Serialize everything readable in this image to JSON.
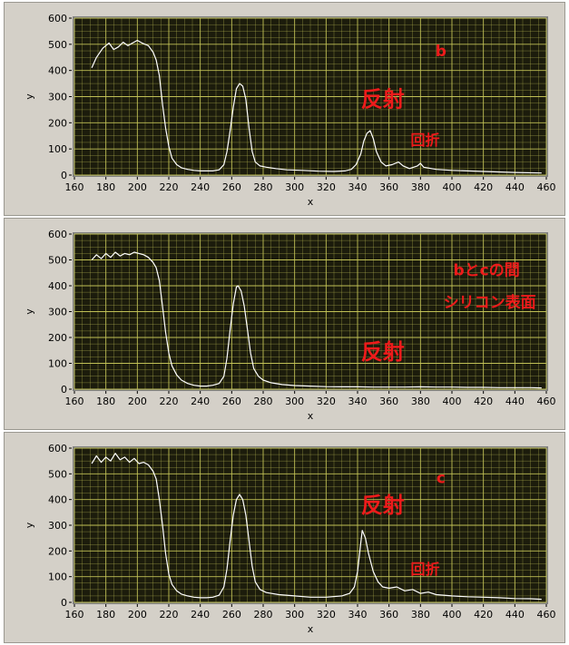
{
  "chart_data": [
    {
      "type": "line",
      "xlabel": "x",
      "ylabel": "y",
      "xlim": [
        160,
        460
      ],
      "ylim": [
        0,
        600
      ],
      "xticks": [
        160,
        180,
        200,
        220,
        240,
        260,
        280,
        300,
        320,
        340,
        360,
        380,
        400,
        420,
        440,
        460
      ],
      "yticks": [
        0,
        100,
        200,
        300,
        400,
        500,
        600
      ],
      "grid": true,
      "colors": {
        "plot_bg": "#1c1c0c",
        "grid": "#c8c85a",
        "line": "#ffffff",
        "annotation": "#ee1b1b"
      },
      "annotations": [
        {
          "text": "b",
          "at": [
            393,
            455
          ]
        },
        {
          "text": "反射",
          "at": [
            356,
            262
          ]
        },
        {
          "text": "回折",
          "at": [
            383,
            115
          ]
        }
      ],
      "series": [
        {
          "points": [
            [
              171,
              410
            ],
            [
              174,
              450
            ],
            [
              178,
              485
            ],
            [
              182,
              505
            ],
            [
              185,
              480
            ],
            [
              188,
              490
            ],
            [
              191,
              508
            ],
            [
              194,
              495
            ],
            [
              197,
              505
            ],
            [
              200,
              515
            ],
            [
              203,
              505
            ],
            [
              207,
              495
            ],
            [
              210,
              470
            ],
            [
              212,
              440
            ],
            [
              214,
              380
            ],
            [
              216,
              270
            ],
            [
              218,
              180
            ],
            [
              220,
              110
            ],
            [
              222,
              65
            ],
            [
              225,
              40
            ],
            [
              228,
              28
            ],
            [
              232,
              22
            ],
            [
              236,
              18
            ],
            [
              240,
              16
            ],
            [
              244,
              16
            ],
            [
              248,
              16
            ],
            [
              252,
              20
            ],
            [
              255,
              40
            ],
            [
              257,
              90
            ],
            [
              259,
              170
            ],
            [
              261,
              260
            ],
            [
              263,
              330
            ],
            [
              265,
              350
            ],
            [
              267,
              340
            ],
            [
              269,
              290
            ],
            [
              271,
              180
            ],
            [
              273,
              90
            ],
            [
              275,
              50
            ],
            [
              278,
              35
            ],
            [
              282,
              30
            ],
            [
              288,
              25
            ],
            [
              295,
              20
            ],
            [
              305,
              18
            ],
            [
              315,
              15
            ],
            [
              325,
              14
            ],
            [
              332,
              16
            ],
            [
              336,
              22
            ],
            [
              339,
              40
            ],
            [
              342,
              80
            ],
            [
              344,
              130
            ],
            [
              346,
              160
            ],
            [
              348,
              170
            ],
            [
              350,
              140
            ],
            [
              352,
              90
            ],
            [
              355,
              50
            ],
            [
              358,
              35
            ],
            [
              362,
              40
            ],
            [
              366,
              50
            ],
            [
              369,
              35
            ],
            [
              373,
              25
            ],
            [
              378,
              35
            ],
            [
              380,
              45
            ],
            [
              382,
              30
            ],
            [
              390,
              22
            ],
            [
              400,
              18
            ],
            [
              420,
              14
            ],
            [
              440,
              10
            ],
            [
              457,
              8
            ]
          ]
        }
      ]
    },
    {
      "type": "line",
      "xlabel": "x",
      "ylabel": "y",
      "xlim": [
        160,
        460
      ],
      "ylim": [
        0,
        600
      ],
      "xticks": [
        160,
        180,
        200,
        220,
        240,
        260,
        280,
        300,
        320,
        340,
        360,
        380,
        400,
        420,
        440,
        460
      ],
      "yticks": [
        0,
        100,
        200,
        300,
        400,
        500,
        600
      ],
      "grid": true,
      "colors": {
        "plot_bg": "#1c1c0c",
        "grid": "#c8c85a",
        "line": "#ffffff",
        "annotation": "#ee1b1b"
      },
      "annotations": [
        {
          "text": "bとcの間",
          "at": [
            422,
            440
          ]
        },
        {
          "text": "シリコン表面",
          "at": [
            424,
            315
          ]
        },
        {
          "text": "反射",
          "at": [
            356,
            115
          ]
        }
      ],
      "series": [
        {
          "points": [
            [
              171,
              500
            ],
            [
              174,
              520
            ],
            [
              177,
              505
            ],
            [
              180,
              525
            ],
            [
              183,
              510
            ],
            [
              186,
              530
            ],
            [
              189,
              515
            ],
            [
              192,
              525
            ],
            [
              195,
              520
            ],
            [
              198,
              530
            ],
            [
              201,
              525
            ],
            [
              204,
              520
            ],
            [
              207,
              510
            ],
            [
              210,
              490
            ],
            [
              212,
              470
            ],
            [
              214,
              420
            ],
            [
              216,
              320
            ],
            [
              218,
              220
            ],
            [
              220,
              140
            ],
            [
              222,
              90
            ],
            [
              225,
              55
            ],
            [
              228,
              35
            ],
            [
              232,
              22
            ],
            [
              236,
              15
            ],
            [
              240,
              12
            ],
            [
              244,
              12
            ],
            [
              248,
              15
            ],
            [
              252,
              22
            ],
            [
              255,
              50
            ],
            [
              257,
              120
            ],
            [
              259,
              230
            ],
            [
              261,
              330
            ],
            [
              263,
              395
            ],
            [
              264,
              400
            ],
            [
              266,
              380
            ],
            [
              268,
              320
            ],
            [
              270,
              230
            ],
            [
              272,
              140
            ],
            [
              274,
              80
            ],
            [
              277,
              50
            ],
            [
              280,
              35
            ],
            [
              285,
              25
            ],
            [
              292,
              18
            ],
            [
              300,
              14
            ],
            [
              310,
              12
            ],
            [
              320,
              10
            ],
            [
              330,
              9
            ],
            [
              340,
              9
            ],
            [
              350,
              8
            ],
            [
              360,
              8
            ],
            [
              370,
              8
            ],
            [
              380,
              9
            ],
            [
              390,
              8
            ],
            [
              400,
              8
            ],
            [
              410,
              7
            ],
            [
              420,
              7
            ],
            [
              430,
              6
            ],
            [
              440,
              6
            ],
            [
              450,
              6
            ],
            [
              457,
              5
            ]
          ]
        }
      ]
    },
    {
      "type": "line",
      "xlabel": "x",
      "ylabel": "y",
      "xlim": [
        160,
        460
      ],
      "ylim": [
        0,
        600
      ],
      "xticks": [
        160,
        180,
        200,
        220,
        240,
        260,
        280,
        300,
        320,
        340,
        360,
        380,
        400,
        420,
        440,
        460
      ],
      "yticks": [
        0,
        100,
        200,
        300,
        400,
        500,
        600
      ],
      "grid": true,
      "colors": {
        "plot_bg": "#1c1c0c",
        "grid": "#c8c85a",
        "line": "#ffffff",
        "annotation": "#ee1b1b"
      },
      "annotations": [
        {
          "text": "c",
          "at": [
            393,
            465
          ]
        },
        {
          "text": "反射",
          "at": [
            356,
            350
          ]
        },
        {
          "text": "回折",
          "at": [
            383,
            110
          ]
        }
      ],
      "series": [
        {
          "points": [
            [
              171,
              540
            ],
            [
              174,
              570
            ],
            [
              177,
              545
            ],
            [
              180,
              565
            ],
            [
              183,
              550
            ],
            [
              186,
              580
            ],
            [
              189,
              555
            ],
            [
              192,
              565
            ],
            [
              195,
              545
            ],
            [
              198,
              560
            ],
            [
              201,
              540
            ],
            [
              204,
              545
            ],
            [
              207,
              535
            ],
            [
              210,
              510
            ],
            [
              212,
              480
            ],
            [
              214,
              400
            ],
            [
              216,
              300
            ],
            [
              218,
              190
            ],
            [
              220,
              110
            ],
            [
              222,
              70
            ],
            [
              225,
              45
            ],
            [
              228,
              32
            ],
            [
              232,
              25
            ],
            [
              236,
              20
            ],
            [
              240,
              18
            ],
            [
              244,
              18
            ],
            [
              248,
              20
            ],
            [
              252,
              28
            ],
            [
              255,
              60
            ],
            [
              257,
              130
            ],
            [
              259,
              240
            ],
            [
              261,
              340
            ],
            [
              263,
              400
            ],
            [
              265,
              420
            ],
            [
              267,
              400
            ],
            [
              269,
              340
            ],
            [
              271,
              240
            ],
            [
              273,
              140
            ],
            [
              275,
              80
            ],
            [
              278,
              50
            ],
            [
              282,
              38
            ],
            [
              290,
              30
            ],
            [
              300,
              25
            ],
            [
              310,
              20
            ],
            [
              320,
              20
            ],
            [
              330,
              25
            ],
            [
              335,
              35
            ],
            [
              338,
              60
            ],
            [
              340,
              120
            ],
            [
              342,
              230
            ],
            [
              343,
              280
            ],
            [
              345,
              250
            ],
            [
              347,
              190
            ],
            [
              350,
              120
            ],
            [
              353,
              80
            ],
            [
              356,
              60
            ],
            [
              360,
              55
            ],
            [
              365,
              60
            ],
            [
              370,
              45
            ],
            [
              375,
              50
            ],
            [
              380,
              35
            ],
            [
              385,
              40
            ],
            [
              390,
              30
            ],
            [
              400,
              25
            ],
            [
              410,
              22
            ],
            [
              420,
              20
            ],
            [
              430,
              18
            ],
            [
              440,
              15
            ],
            [
              450,
              14
            ],
            [
              457,
              12
            ]
          ]
        }
      ]
    }
  ]
}
